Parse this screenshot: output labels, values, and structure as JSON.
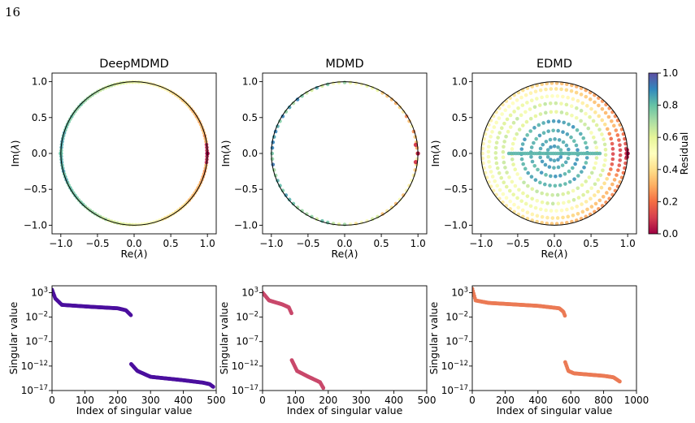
{
  "page_number": "16",
  "chart_data": [
    {
      "type": "scatter",
      "title": "DeepMDMD",
      "xlabel": "Re(λ)",
      "ylabel": "Im(λ)",
      "xlim": [
        -1.12,
        1.12
      ],
      "ylim": [
        -1.12,
        1.12
      ],
      "xticks": [
        "−1.0",
        "−0.5",
        "0.0",
        "0.5",
        "1.0"
      ],
      "yticks": [
        "−1.0",
        "−0.5",
        "0.0",
        "0.5",
        "1.0"
      ],
      "unit_circle": true,
      "eigenvalue_rings": [
        {
          "radius": 0.995,
          "count": 150,
          "residual_pattern": "angle"
        }
      ],
      "eigenvalues": [
        {
          "x": 1.0,
          "y": 0.0,
          "residual": 0.0
        },
        {
          "x": -1.0,
          "y": 0.0,
          "residual": 0.8
        }
      ]
    },
    {
      "type": "scatter",
      "title": "MDMD",
      "xlabel": "Re(λ)",
      "ylabel": "Im(λ)",
      "xlim": [
        -1.12,
        1.12
      ],
      "ylim": [
        -1.12,
        1.12
      ],
      "xticks": [
        "−1.0",
        "−0.5",
        "0.0",
        "0.5",
        "1.0"
      ],
      "yticks": [
        "−1.0",
        "−0.5",
        "0.0",
        "0.5",
        "1.0"
      ],
      "unit_circle": true,
      "eigenvalue_rings": [
        {
          "radius": 0.99,
          "count": 80,
          "residual_pattern": "mixed"
        }
      ],
      "eigenvalues": [
        {
          "x": 1.0,
          "y": 0.0,
          "residual": 0.05
        },
        {
          "x": 0.97,
          "y": 0.12,
          "residual": 0.1
        },
        {
          "x": 0.97,
          "y": -0.12,
          "residual": 0.1
        }
      ]
    },
    {
      "type": "scatter",
      "title": "EDMD",
      "xlabel": "Re(λ)",
      "ylabel": "Im(λ)",
      "xlim": [
        -1.12,
        1.12
      ],
      "ylim": [
        -1.12,
        1.12
      ],
      "xticks": [
        "−1.0",
        "−0.5",
        "0.0",
        "0.5",
        "1.0"
      ],
      "yticks": [
        "−1.0",
        "−0.5",
        "0.0",
        "0.5",
        "1.0"
      ],
      "unit_circle": true,
      "eigenvalue_rings": [
        {
          "radius": 0.98,
          "count": 90,
          "residual_pattern": "outer"
        },
        {
          "radius": 0.9,
          "count": 80,
          "residual_pattern": "outer"
        },
        {
          "radius": 0.8,
          "count": 70,
          "residual_pattern": "outer"
        },
        {
          "radius": 0.7,
          "count": 60,
          "residual_pattern": "mid"
        },
        {
          "radius": 0.58,
          "count": 50,
          "residual_pattern": "mid"
        },
        {
          "radius": 0.45,
          "count": 40,
          "residual_pattern": "inner"
        },
        {
          "radius": 0.32,
          "count": 30,
          "residual_pattern": "inner"
        },
        {
          "radius": 0.2,
          "count": 20,
          "residual_pattern": "inner"
        },
        {
          "radius": 0.1,
          "count": 12,
          "residual_pattern": "inner"
        }
      ],
      "eigenvalue_lines": [
        {
          "x_from": -0.62,
          "x_to": 0.62,
          "y": 0.0,
          "count": 40,
          "residual": 0.82
        }
      ],
      "eigenvalues": [
        {
          "x": 1.0,
          "y": 0.0,
          "residual": 0.0
        },
        {
          "x": 0.99,
          "y": 0.05,
          "residual": 0.05
        },
        {
          "x": 0.99,
          "y": -0.05,
          "residual": 0.05
        }
      ]
    },
    {
      "type": "colorbar",
      "label": "Residual",
      "range": [
        0.0,
        1.0
      ],
      "ticks": [
        "0.0",
        "0.2",
        "0.4",
        "0.6",
        "0.8",
        "1.0"
      ],
      "colormap": "Spectral",
      "stops": [
        "#9e0142",
        "#d53e4f",
        "#f46d43",
        "#fdae61",
        "#fee08b",
        "#ffffbf",
        "#e6f598",
        "#abdda4",
        "#66c2a5",
        "#3288bd",
        "#5e4fa2"
      ]
    },
    {
      "type": "scatter",
      "xlabel": "Index of singular value",
      "ylabel": "Singular value",
      "xlim": [
        0,
        500
      ],
      "xticks": [
        "0",
        "100",
        "200",
        "300",
        "400",
        "500"
      ],
      "yscale": "log",
      "ylim_log10": [
        -17,
        4.4
      ],
      "yticks": [
        {
          "base": "10",
          "exp": "3"
        },
        {
          "base": "10",
          "exp": "−2"
        },
        {
          "base": "10",
          "exp": "−7"
        },
        {
          "base": "10",
          "exp": "−12"
        },
        {
          "base": "10",
          "exp": "−17"
        }
      ],
      "color": "#4b0f9e",
      "segments": [
        {
          "x_from": 0,
          "x_to": 240,
          "log10_y": [
            [
              0,
              3.6
            ],
            [
              10,
              1.8
            ],
            [
              30,
              0.5
            ],
            [
              120,
              0.1
            ],
            [
              200,
              -0.2
            ],
            [
              225,
              -0.6
            ],
            [
              240,
              -1.6
            ]
          ]
        },
        {
          "x_from": 241,
          "x_to": 492,
          "log10_y": [
            [
              241,
              -11.6
            ],
            [
              260,
              -13.0
            ],
            [
              300,
              -14.2
            ],
            [
              400,
              -14.9
            ],
            [
              460,
              -15.4
            ],
            [
              480,
              -15.7
            ],
            [
              492,
              -16.3
            ]
          ]
        }
      ]
    },
    {
      "type": "scatter",
      "xlabel": "Index of singular value",
      "ylabel": "Singular value",
      "xlim": [
        0,
        500
      ],
      "xticks": [
        "0",
        "100",
        "200",
        "300",
        "400",
        "500"
      ],
      "yscale": "log",
      "ylim_log10": [
        -17,
        4.4
      ],
      "yticks": [
        {
          "base": "10",
          "exp": "3"
        },
        {
          "base": "10",
          "exp": "−2"
        },
        {
          "base": "10",
          "exp": "−7"
        },
        {
          "base": "10",
          "exp": "−12"
        },
        {
          "base": "10",
          "exp": "−17"
        }
      ],
      "color": "#c9486b",
      "segments": [
        {
          "x_from": 0,
          "x_to": 88,
          "log10_y": [
            [
              0,
              3.0
            ],
            [
              20,
              1.4
            ],
            [
              60,
              0.6
            ],
            [
              80,
              0.0
            ],
            [
              88,
              -1.2
            ]
          ]
        },
        {
          "x_from": 89,
          "x_to": 186,
          "log10_y": [
            [
              89,
              -10.8
            ],
            [
              105,
              -13.0
            ],
            [
              140,
              -14.2
            ],
            [
              175,
              -15.3
            ],
            [
              186,
              -16.6
            ]
          ]
        }
      ]
    },
    {
      "type": "scatter",
      "xlabel": "Index of singular value",
      "ylabel": "Singular value",
      "xlim": [
        0,
        1000
      ],
      "xticks": [
        "0",
        "200",
        "400",
        "600",
        "800",
        "1000"
      ],
      "yscale": "log",
      "ylim_log10": [
        -17,
        4.4
      ],
      "yticks": [
        {
          "base": "10",
          "exp": "3"
        },
        {
          "base": "10",
          "exp": "−2"
        },
        {
          "base": "10",
          "exp": "−7"
        },
        {
          "base": "10",
          "exp": "−12"
        },
        {
          "base": "10",
          "exp": "−17"
        }
      ],
      "color": "#eb7a55",
      "segments": [
        {
          "x_from": 0,
          "x_to": 565,
          "log10_y": [
            [
              0,
              3.8
            ],
            [
              20,
              1.4
            ],
            [
              100,
              0.9
            ],
            [
              400,
              0.3
            ],
            [
              530,
              -0.2
            ],
            [
              555,
              -0.9
            ],
            [
              565,
              -1.8
            ]
          ]
        },
        {
          "x_from": 566,
          "x_to": 900,
          "log10_y": [
            [
              566,
              -11.2
            ],
            [
              585,
              -13.0
            ],
            [
              620,
              -13.5
            ],
            [
              800,
              -14.0
            ],
            [
              860,
              -14.3
            ],
            [
              900,
              -15.2
            ]
          ]
        }
      ]
    }
  ]
}
